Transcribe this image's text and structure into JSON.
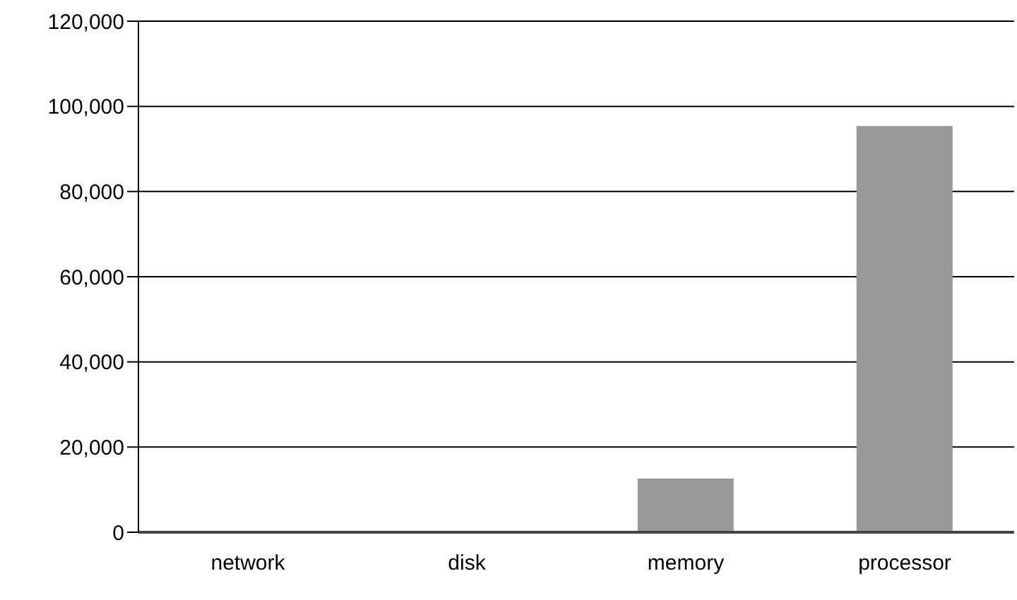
{
  "chart_data": {
    "type": "bar",
    "categories": [
      "network",
      "disk",
      "memory",
      "processor"
    ],
    "values": [
      0,
      0,
      12600,
      95400
    ],
    "color": "#999999",
    "ylim": [
      0,
      120000
    ],
    "yticks": [
      0,
      {
        "value": 20000,
        "label": "20,000"
      },
      {
        "value": 40000,
        "label": "40,000"
      },
      {
        "value": 60000,
        "label": "60,000"
      },
      {
        "value": 80000,
        "label": "80,000"
      },
      {
        "value": 100000,
        "label": "100,000"
      },
      {
        "value": 120000,
        "label": "120,000"
      }
    ],
    "grid": "y"
  }
}
